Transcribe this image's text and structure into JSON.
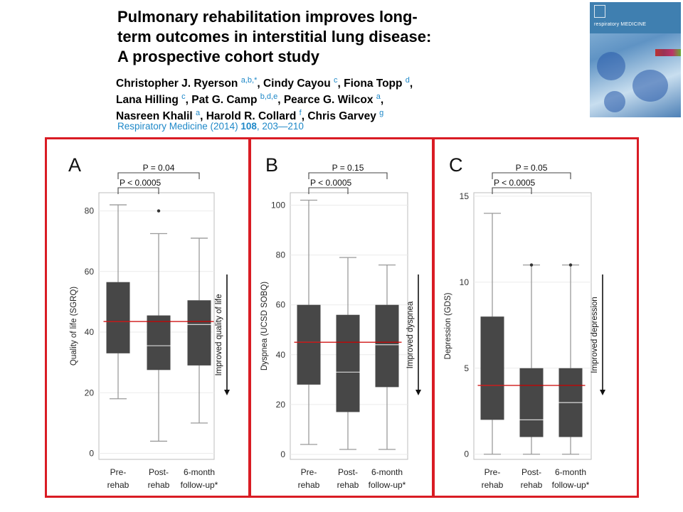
{
  "article": {
    "title_lines": [
      "Pulmonary rehabilitation improves long-",
      "term outcomes in interstitial lung disease:",
      "A prospective cohort study"
    ],
    "author_lines": [
      [
        {
          "n": "Christopher J. Ryerson ",
          "a": "a,b,*"
        },
        {
          "n": ", Cindy Cayou ",
          "a": "c"
        },
        {
          "n": ", Fiona Topp ",
          "a": "d"
        },
        {
          "n": ",",
          "a": ""
        }
      ],
      [
        {
          "n": "Lana Hilling ",
          "a": "c"
        },
        {
          "n": ", Pat G. Camp ",
          "a": "b,d,e"
        },
        {
          "n": ", Pearce G. Wilcox ",
          "a": "a"
        },
        {
          "n": ",",
          "a": ""
        }
      ],
      [
        {
          "n": "Nasreen Khalil ",
          "a": "a"
        },
        {
          "n": ", Harold R. Collard ",
          "a": "f"
        },
        {
          "n": ", Chris Garvey ",
          "a": "g"
        }
      ]
    ],
    "citation_journal": "Respiratory Medicine (2014) ",
    "citation_volume": "108",
    "citation_pages": ", 203—210"
  },
  "cover": {
    "journal": "respiratory MEDICINE",
    "colors": {
      "band": "#3f7fb0"
    }
  },
  "colors": {
    "frame": "#d91c24",
    "box": "#474747",
    "whisker": "#9a9a9a",
    "median": "#d8d8d8",
    "ref_line": "#cc0000",
    "grid": "#ebebeb"
  },
  "categories": [
    [
      "Pre-",
      "rehab"
    ],
    [
      "Post-",
      "rehab"
    ],
    [
      "6-month",
      "follow-up*"
    ]
  ],
  "chart_data": [
    {
      "type": "box",
      "panel_label": "A",
      "ylabel": "Quality of life (SGRQ)",
      "ylim": [
        -2,
        86
      ],
      "yticks": [
        0,
        20,
        40,
        60,
        80
      ],
      "categories": [
        "Pre-rehab",
        "Post-rehab",
        "6-month follow-up*"
      ],
      "boxes": [
        {
          "min": 18,
          "q1": 33,
          "median": 43.5,
          "q3": 56.5,
          "max": 82,
          "outliers": []
        },
        {
          "min": 4,
          "q1": 27.5,
          "median": 35.5,
          "q3": 45.5,
          "max": 72.5,
          "outliers": [
            80
          ]
        },
        {
          "min": 10,
          "q1": 29,
          "median": 42.5,
          "q3": 50.5,
          "max": 71,
          "outliers": []
        }
      ],
      "reference_line": 43.5,
      "brackets": [
        {
          "from": 0,
          "to": 2,
          "label": "P = 0.04"
        },
        {
          "from": 0,
          "to": 1,
          "label": "P < 0.0005"
        }
      ],
      "arrow_label": "Improved quality of life",
      "grid": true
    },
    {
      "type": "box",
      "panel_label": "B",
      "ylabel": "Dyspnea (UCSD SOBQ)",
      "ylim": [
        -2,
        105
      ],
      "yticks": [
        0,
        20,
        40,
        60,
        80,
        100
      ],
      "categories": [
        "Pre-rehab",
        "Post-rehab",
        "6-month follow-up*"
      ],
      "boxes": [
        {
          "min": 4,
          "q1": 28,
          "median": 45,
          "q3": 60,
          "max": 102,
          "outliers": []
        },
        {
          "min": 2,
          "q1": 17,
          "median": 33,
          "q3": 56,
          "max": 79,
          "outliers": []
        },
        {
          "min": 2,
          "q1": 27,
          "median": 44,
          "q3": 60,
          "max": 76,
          "outliers": []
        }
      ],
      "reference_line": 45,
      "brackets": [
        {
          "from": 0,
          "to": 2,
          "label": "P = 0.15"
        },
        {
          "from": 0,
          "to": 1,
          "label": "P < 0.0005"
        }
      ],
      "arrow_label": "Improved dyspnea",
      "grid": true
    },
    {
      "type": "box",
      "panel_label": "C",
      "ylabel": "Depression (GDS)",
      "ylim": [
        -0.3,
        15.2
      ],
      "yticks": [
        0,
        5,
        10,
        15
      ],
      "categories": [
        "Pre-rehab",
        "Post-rehab",
        "6-month follow-up*"
      ],
      "boxes": [
        {
          "min": 0,
          "q1": 2,
          "median": 4,
          "q3": 8,
          "max": 14,
          "outliers": []
        },
        {
          "min": 0,
          "q1": 1,
          "median": 2,
          "q3": 5,
          "max": 11,
          "outliers": [
            11
          ]
        },
        {
          "min": 0,
          "q1": 1,
          "median": 3,
          "q3": 5,
          "max": 11,
          "outliers": [
            11
          ]
        }
      ],
      "reference_line": 4,
      "brackets": [
        {
          "from": 0,
          "to": 2,
          "label": "P = 0.05"
        },
        {
          "from": 0,
          "to": 1,
          "label": "P < 0.0005"
        }
      ],
      "arrow_label": "Improved depression",
      "grid": true
    }
  ]
}
